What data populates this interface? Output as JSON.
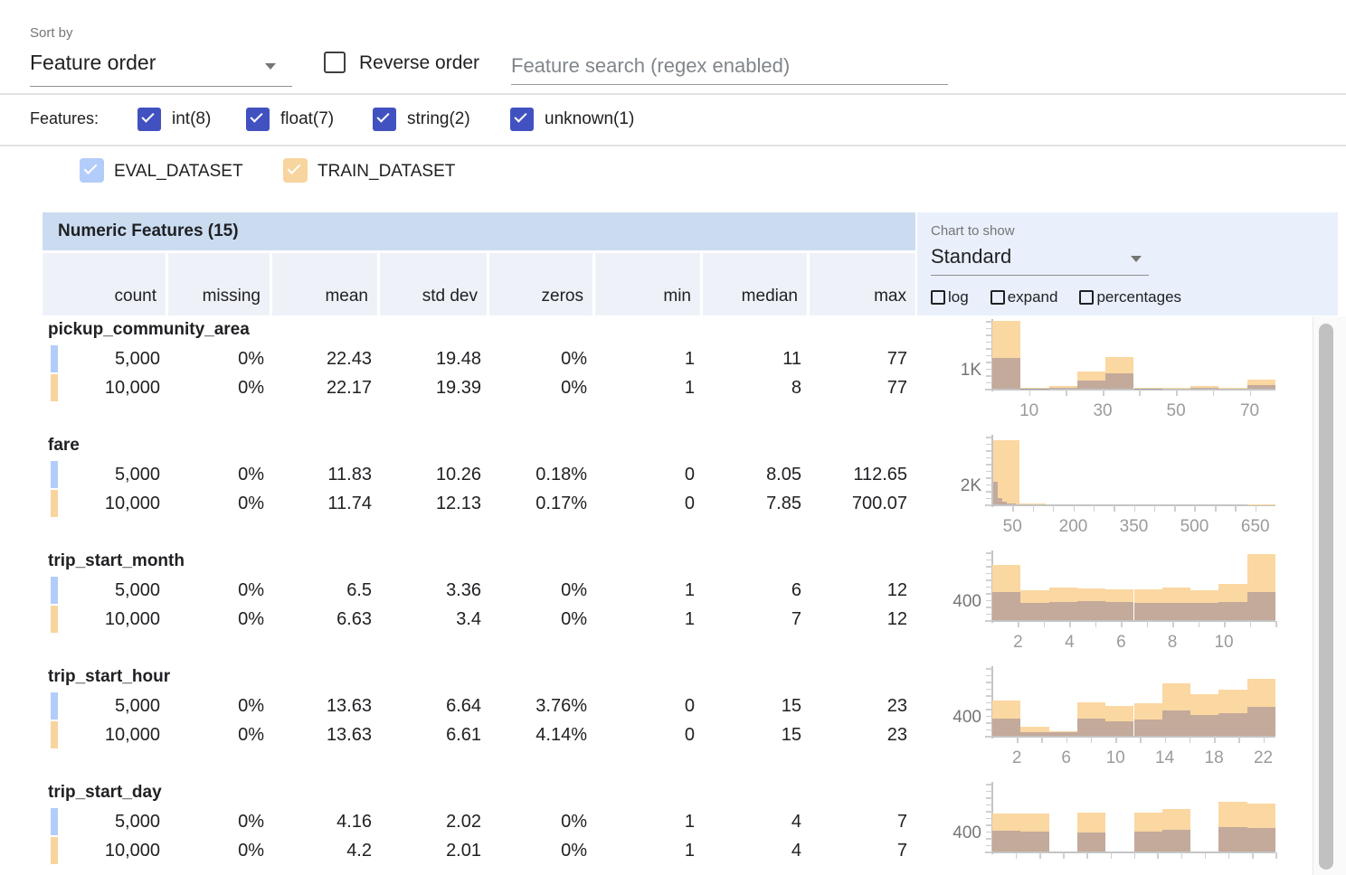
{
  "toolbar": {
    "sort_by_label": "Sort by",
    "sort_by_value": "Feature order",
    "reverse_order_label": "Reverse order",
    "search_placeholder": "Feature search (regex enabled)"
  },
  "filters": {
    "label": "Features:",
    "types": [
      {
        "label": "int(8)",
        "checked": true
      },
      {
        "label": "float(7)",
        "checked": true
      },
      {
        "label": "string(2)",
        "checked": true
      },
      {
        "label": "unknown(1)",
        "checked": true
      }
    ]
  },
  "datasets": [
    {
      "name": "EVAL_DATASET",
      "color": "#b3cdfa",
      "checked": true
    },
    {
      "name": "TRAIN_DATASET",
      "color": "#f8d49e",
      "checked": true
    }
  ],
  "table": {
    "title": "Numeric Features (15)",
    "columns": [
      "count",
      "missing",
      "mean",
      "std dev",
      "zeros",
      "min",
      "median",
      "max"
    ]
  },
  "chart_controls": {
    "label": "Chart to show",
    "selected": "Standard",
    "toggles": [
      {
        "label": "log",
        "checked": false
      },
      {
        "label": "expand",
        "checked": false
      },
      {
        "label": "percentages",
        "checked": false
      }
    ]
  },
  "colors": {
    "eval_swatch": "#b3cdfa",
    "train_swatch": "#f8d49e",
    "train_bar": "#fbd7a1",
    "type_checkbox": "#4152c0",
    "table_header_bg": "#cbdcf1",
    "column_header_bg": "#eef2f8",
    "chart_panel_bg": "#e9f0fb"
  },
  "features": [
    {
      "name": "pickup_community_area",
      "eval_row": [
        "5,000",
        "0%",
        "22.43",
        "19.48",
        "0%",
        "1",
        "11",
        "77"
      ],
      "train_row": [
        "10,000",
        "0%",
        "22.17",
        "19.39",
        "0%",
        "1",
        "8",
        "77"
      ],
      "chart": {
        "type": "histogram",
        "y_label": "1K",
        "x_ticks": [
          {
            "f": 0.13,
            "label": "10"
          },
          {
            "f": 0.39,
            "label": "30"
          },
          {
            "f": 0.649,
            "label": "50"
          },
          {
            "f": 0.909,
            "label": "70"
          }
        ],
        "minor_ticks": [
          0.13,
          0.26,
          0.39,
          0.519,
          0.649,
          0.779,
          0.909
        ],
        "train_bars": [
          [
            0,
            0.1,
            1.0
          ],
          [
            0.1,
            0.2,
            0.012
          ],
          [
            0.2,
            0.3,
            0.045
          ],
          [
            0.3,
            0.4,
            0.26
          ],
          [
            0.4,
            0.5,
            0.47
          ],
          [
            0.5,
            0.6,
            0.012
          ],
          [
            0.6,
            0.7,
            0.012
          ],
          [
            0.7,
            0.8,
            0.04
          ],
          [
            0.8,
            0.9,
            0.012
          ],
          [
            0.9,
            1.0,
            0.13
          ]
        ],
        "eval_bars": [
          [
            0,
            0.1,
            0.46
          ],
          [
            0.1,
            0.2,
            0.006
          ],
          [
            0.2,
            0.3,
            0.02
          ],
          [
            0.3,
            0.4,
            0.12
          ],
          [
            0.4,
            0.5,
            0.23
          ],
          [
            0.5,
            0.6,
            0.006
          ],
          [
            0.7,
            0.8,
            0.02
          ],
          [
            0.9,
            1.0,
            0.06
          ]
        ]
      }
    },
    {
      "name": "fare",
      "eval_row": [
        "5,000",
        "0%",
        "11.83",
        "10.26",
        "0.18%",
        "0",
        "8.05",
        "112.65"
      ],
      "train_row": [
        "10,000",
        "0%",
        "11.74",
        "12.13",
        "0.17%",
        "0",
        "7.85",
        "700.07"
      ],
      "chart": {
        "type": "histogram",
        "y_label": "2K",
        "x_ticks": [
          {
            "f": 0.071,
            "label": "50"
          },
          {
            "f": 0.286,
            "label": "200"
          },
          {
            "f": 0.5,
            "label": "350"
          },
          {
            "f": 0.714,
            "label": "500"
          },
          {
            "f": 0.929,
            "label": "650"
          }
        ],
        "minor_ticks": [
          0.071,
          0.143,
          0.214,
          0.286,
          0.357,
          0.429,
          0.5,
          0.571,
          0.643,
          0.714,
          0.786,
          0.857,
          0.929
        ],
        "train_bars": [
          [
            0.004,
            0.095,
            0.95
          ],
          [
            0.095,
            0.19,
            0.01
          ],
          [
            0.9,
            1.0,
            0.006
          ]
        ],
        "eval_bars": [
          [
            0.004,
            0.02,
            0.33
          ],
          [
            0.02,
            0.036,
            0.09
          ],
          [
            0.036,
            0.052,
            0.035
          ],
          [
            0.052,
            0.068,
            0.015
          ],
          [
            0.068,
            0.084,
            0.008
          ]
        ]
      }
    },
    {
      "name": "trip_start_month",
      "eval_row": [
        "5,000",
        "0%",
        "6.5",
        "3.36",
        "0%",
        "1",
        "6",
        "12"
      ],
      "train_row": [
        "10,000",
        "0%",
        "6.63",
        "3.4",
        "0%",
        "1",
        "7",
        "12"
      ],
      "chart": {
        "type": "histogram",
        "y_label": "400",
        "x_ticks": [
          {
            "f": 0.091,
            "label": "2"
          },
          {
            "f": 0.273,
            "label": "4"
          },
          {
            "f": 0.455,
            "label": "6"
          },
          {
            "f": 0.636,
            "label": "8"
          },
          {
            "f": 0.818,
            "label": "10"
          }
        ],
        "minor_ticks": [
          0.091,
          0.182,
          0.273,
          0.364,
          0.455,
          0.545,
          0.636,
          0.727,
          0.818,
          0.909,
          1.0
        ],
        "train_bars": [
          [
            0,
            0.1,
            0.82
          ],
          [
            0.1,
            0.2,
            0.44
          ],
          [
            0.2,
            0.3,
            0.48
          ],
          [
            0.3,
            0.4,
            0.47
          ],
          [
            0.4,
            0.5,
            0.46
          ],
          [
            0.5,
            0.6,
            0.45
          ],
          [
            0.6,
            0.7,
            0.48
          ],
          [
            0.7,
            0.8,
            0.44
          ],
          [
            0.8,
            0.9,
            0.53
          ],
          [
            0.9,
            1.0,
            0.97
          ]
        ],
        "eval_bars": [
          [
            0,
            0.1,
            0.42
          ],
          [
            0.1,
            0.2,
            0.26
          ],
          [
            0.2,
            0.3,
            0.27
          ],
          [
            0.3,
            0.4,
            0.28
          ],
          [
            0.4,
            0.5,
            0.27
          ],
          [
            0.5,
            0.6,
            0.26
          ],
          [
            0.6,
            0.7,
            0.25
          ],
          [
            0.7,
            0.8,
            0.26
          ],
          [
            0.8,
            0.9,
            0.27
          ],
          [
            0.9,
            1.0,
            0.42
          ]
        ]
      }
    },
    {
      "name": "trip_start_hour",
      "eval_row": [
        "5,000",
        "0%",
        "13.63",
        "6.64",
        "3.76%",
        "0",
        "15",
        "23"
      ],
      "train_row": [
        "10,000",
        "0%",
        "13.63",
        "6.61",
        "4.14%",
        "0",
        "15",
        "23"
      ],
      "chart": {
        "type": "histogram",
        "y_label": "400",
        "x_ticks": [
          {
            "f": 0.087,
            "label": "2"
          },
          {
            "f": 0.261,
            "label": "6"
          },
          {
            "f": 0.435,
            "label": "10"
          },
          {
            "f": 0.609,
            "label": "14"
          },
          {
            "f": 0.783,
            "label": "18"
          },
          {
            "f": 0.957,
            "label": "22"
          }
        ],
        "minor_ticks": [
          0.087,
          0.174,
          0.261,
          0.348,
          0.435,
          0.522,
          0.609,
          0.696,
          0.783,
          0.87,
          0.957
        ],
        "train_bars": [
          [
            0,
            0.1,
            0.52
          ],
          [
            0.1,
            0.2,
            0.14
          ],
          [
            0.2,
            0.3,
            0.07
          ],
          [
            0.3,
            0.4,
            0.5
          ],
          [
            0.4,
            0.5,
            0.44
          ],
          [
            0.5,
            0.6,
            0.48
          ],
          [
            0.6,
            0.7,
            0.78
          ],
          [
            0.7,
            0.8,
            0.62
          ],
          [
            0.8,
            0.9,
            0.68
          ],
          [
            0.9,
            1.0,
            0.84
          ]
        ],
        "eval_bars": [
          [
            0,
            0.1,
            0.25
          ],
          [
            0.1,
            0.2,
            0.06
          ],
          [
            0.2,
            0.3,
            0.05
          ],
          [
            0.3,
            0.4,
            0.25
          ],
          [
            0.4,
            0.5,
            0.21
          ],
          [
            0.5,
            0.6,
            0.24
          ],
          [
            0.6,
            0.7,
            0.37
          ],
          [
            0.7,
            0.8,
            0.31
          ],
          [
            0.8,
            0.9,
            0.34
          ],
          [
            0.9,
            1.0,
            0.43
          ]
        ]
      }
    },
    {
      "name": "trip_start_day",
      "eval_row": [
        "5,000",
        "0%",
        "4.16",
        "2.02",
        "0%",
        "1",
        "4",
        "7"
      ],
      "train_row": [
        "10,000",
        "0%",
        "4.2",
        "2.01",
        "0%",
        "1",
        "4",
        "7"
      ],
      "chart": {
        "type": "histogram",
        "y_label": "400",
        "x_ticks": [],
        "minor_ticks": [
          0.083,
          0.167,
          0.25,
          0.333,
          0.417,
          0.5,
          0.583,
          0.667,
          0.75,
          0.833,
          0.917,
          1.0
        ],
        "train_bars": [
          [
            0,
            0.1,
            0.56
          ],
          [
            0.1,
            0.2,
            0.56
          ],
          [
            0.3,
            0.4,
            0.58
          ],
          [
            0.5,
            0.6,
            0.57
          ],
          [
            0.6,
            0.7,
            0.63
          ],
          [
            0.8,
            0.9,
            0.73
          ],
          [
            0.9,
            1.0,
            0.71
          ]
        ],
        "eval_bars": [
          [
            0,
            0.1,
            0.31
          ],
          [
            0.1,
            0.2,
            0.3
          ],
          [
            0.3,
            0.4,
            0.28
          ],
          [
            0.5,
            0.6,
            0.29
          ],
          [
            0.6,
            0.7,
            0.32
          ],
          [
            0.8,
            0.9,
            0.36
          ],
          [
            0.9,
            1.0,
            0.35
          ]
        ]
      }
    }
  ]
}
